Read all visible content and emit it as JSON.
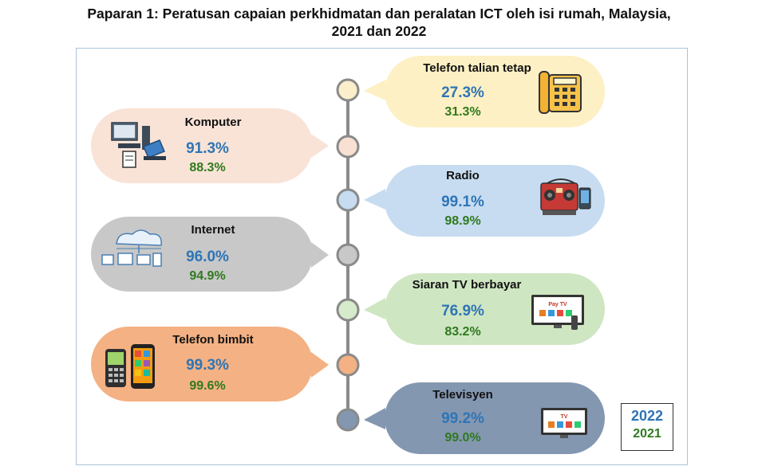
{
  "title_line1": "Paparan 1: Peratusan capaian perkhidmatan dan peralatan ICT oleh isi rumah, Malaysia,",
  "title_line2": "2021 dan 2022",
  "legend": {
    "y2022": "2022",
    "y2021": "2021"
  },
  "colors": {
    "series_2022": "#2e75b6",
    "series_2021": "#2f7a1f",
    "timeline": "#8a8a8a",
    "frame": "#a9c3db"
  },
  "chart_data": {
    "type": "table",
    "series": [
      {
        "name": "2022",
        "values": [
          27.3,
          91.3,
          99.1,
          96.0,
          76.9,
          99.3,
          99.2
        ]
      },
      {
        "name": "2021",
        "values": [
          31.3,
          88.3,
          98.9,
          94.9,
          83.2,
          99.6,
          99.0
        ]
      }
    ],
    "categories": [
      "Telefon talian tetap",
      "Komputer",
      "Radio",
      "Internet",
      "Siaran TV berbayar",
      "Telefon bimbit",
      "Televisyen"
    ],
    "items": [
      {
        "label": "Telefon talian tetap",
        "v2022": "27.3%",
        "v2021": "31.3%",
        "side": "right",
        "color": "#fdf0c4",
        "dot": "#fbeecb",
        "icon": "landline-phone-icon"
      },
      {
        "label": "Komputer",
        "v2022": "91.3%",
        "v2021": "88.3%",
        "side": "left",
        "color": "#f9e3d6",
        "dot": "#f8e0d3",
        "icon": "computer-icon"
      },
      {
        "label": "Radio",
        "v2022": "99.1%",
        "v2021": "98.9%",
        "side": "right",
        "color": "#c7dcf0",
        "dot": "#c7dcf0",
        "icon": "radio-icon"
      },
      {
        "label": "Internet",
        "v2022": "96.0%",
        "v2021": "94.9%",
        "side": "left",
        "color": "#c8c8c8",
        "dot": "#c8c8c8",
        "icon": "internet-icon"
      },
      {
        "label": "Siaran TV berbayar",
        "v2022": "76.9%",
        "v2021": "83.2%",
        "side": "right",
        "color": "#cfe6c2",
        "dot": "#d6ebcb",
        "icon": "pay-tv-icon"
      },
      {
        "label": "Telefon bimbit",
        "v2022": "99.3%",
        "v2021": "99.6%",
        "side": "left",
        "color": "#f4b183",
        "dot": "#f4b183",
        "icon": "mobile-phone-icon"
      },
      {
        "label": "Televisyen",
        "v2022": "99.2%",
        "v2021": "99.0%",
        "side": "right",
        "color": "#8497b0",
        "dot": "#8497b0",
        "icon": "television-icon"
      }
    ],
    "icon_text": {
      "pay_tv": "Pay TV",
      "tv": "TV"
    }
  }
}
